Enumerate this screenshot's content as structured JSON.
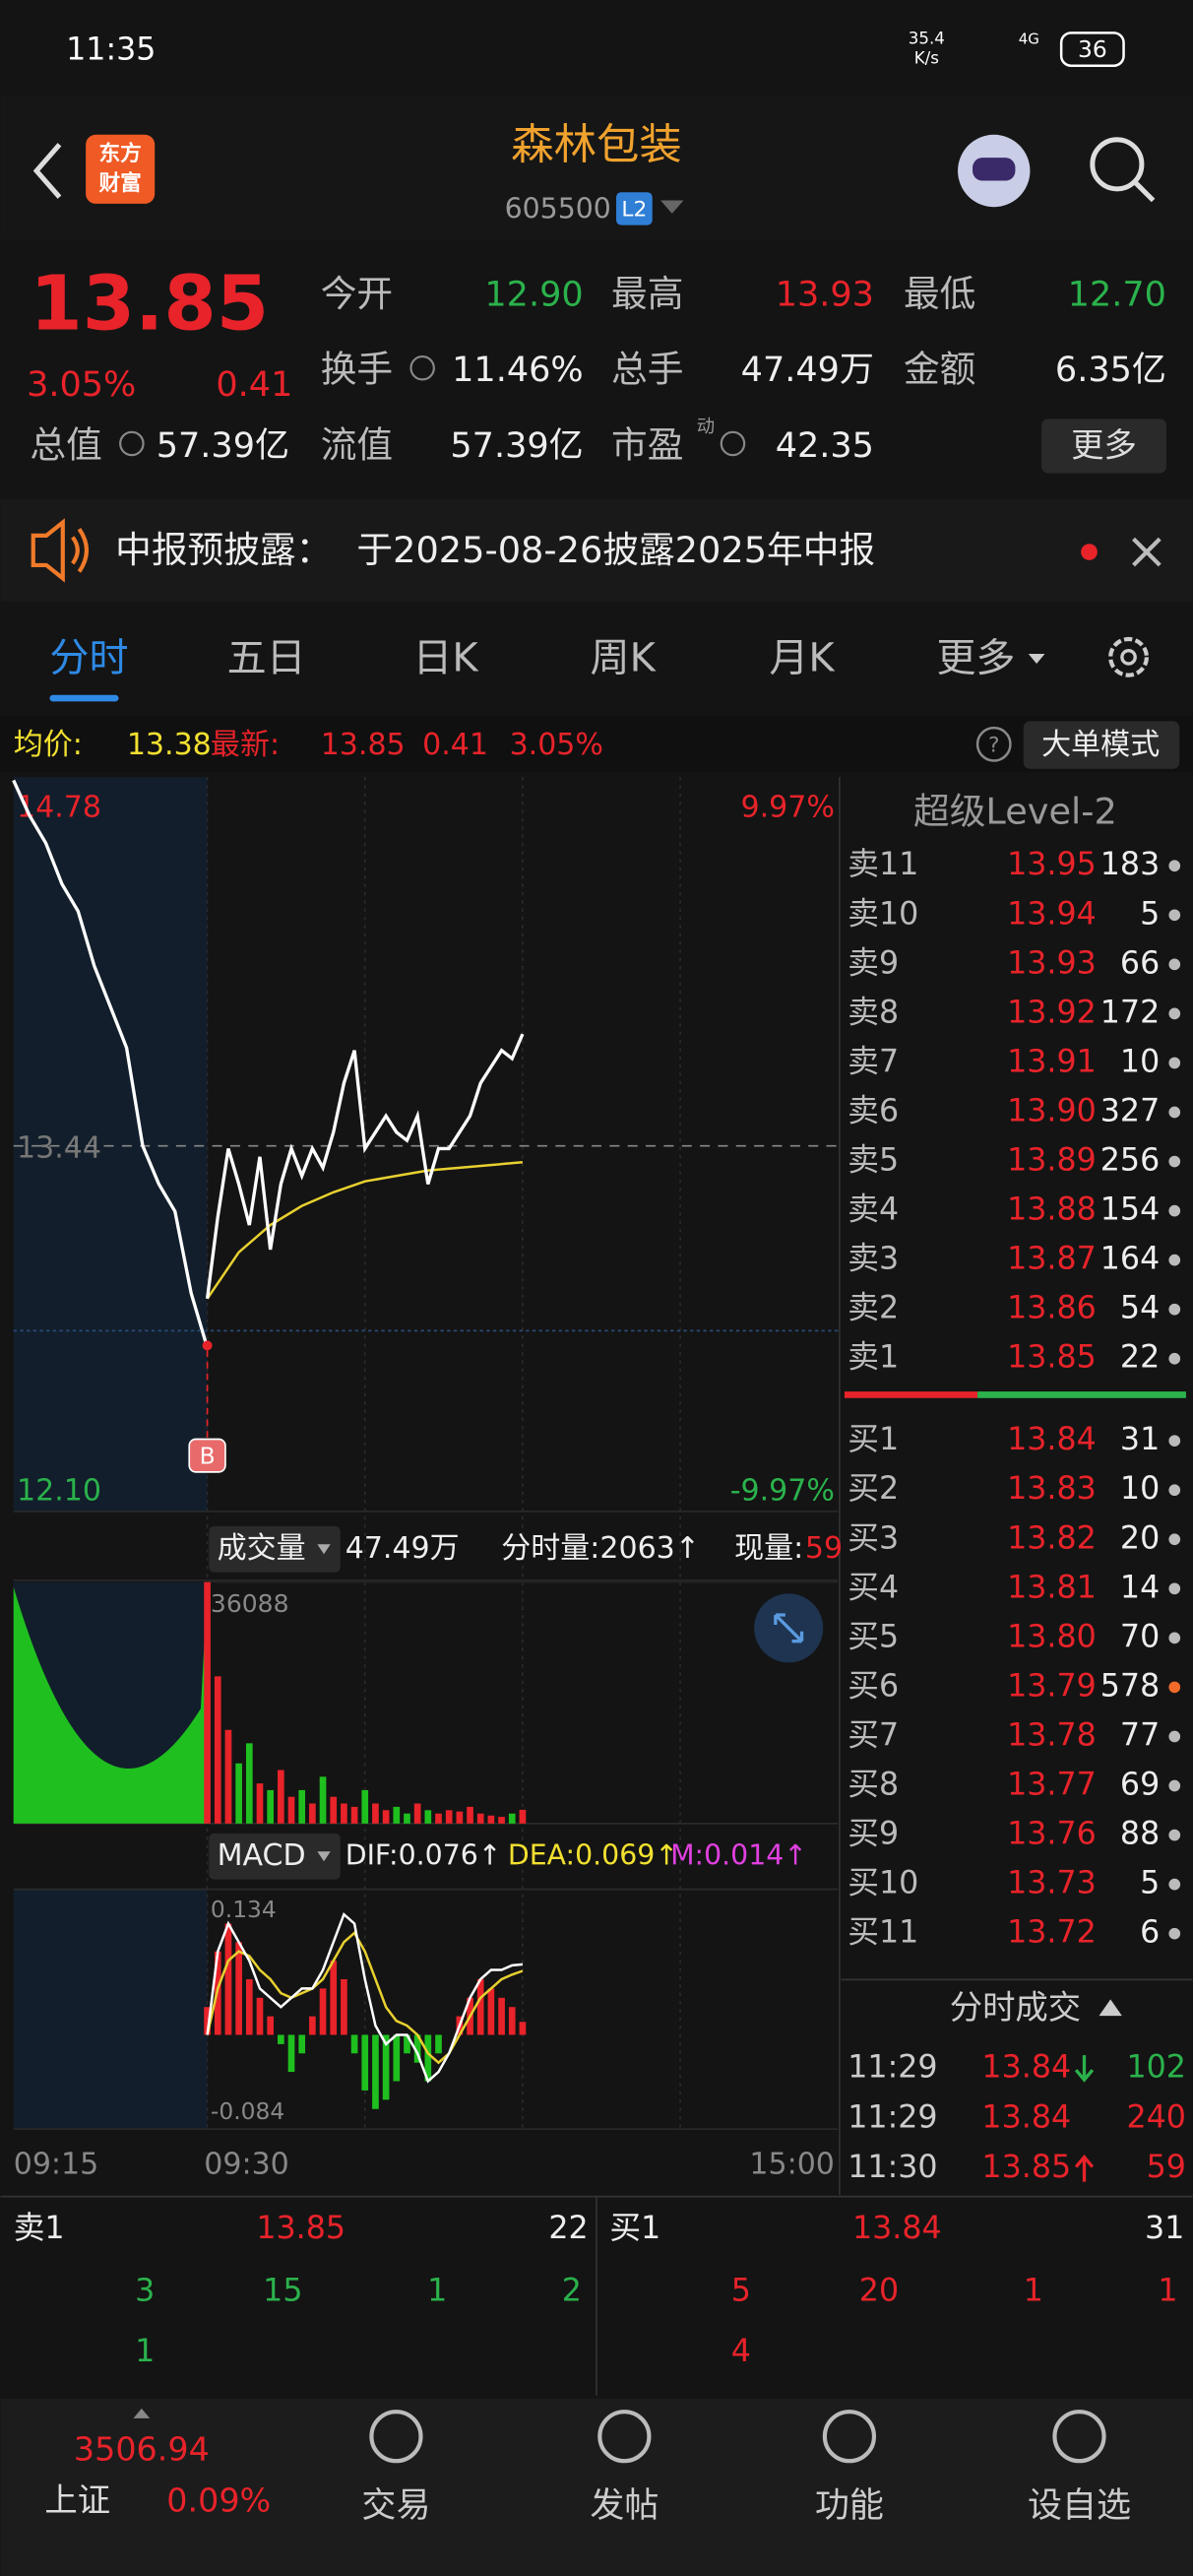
{
  "status": {
    "time": "11:35",
    "speed": "35.4",
    "speed_unit": "K/s",
    "network": "4G",
    "battery": "36"
  },
  "header": {
    "title": "森林包装",
    "code": "605500",
    "badge": "L2",
    "logo": [
      "东方",
      "财富"
    ]
  },
  "quote": {
    "price": "13.85",
    "pct": "3.05%",
    "change": "0.41",
    "fields": [
      {
        "label": "今开",
        "value": "12.90"
      },
      {
        "label": "最高",
        "value": "13.93"
      },
      {
        "label": "最低",
        "value": "12.70"
      },
      {
        "label": "换手",
        "value": "11.46%"
      },
      {
        "label": "总手",
        "value": "47.49万"
      },
      {
        "label": "金额",
        "value": "6.35亿"
      },
      {
        "label": "总值",
        "value": "57.39亿"
      },
      {
        "label": "流值",
        "value": "57.39亿"
      },
      {
        "label": "市盈",
        "value": "42.35",
        "sup": "动"
      }
    ],
    "more": "更多"
  },
  "notice": {
    "title": "中报预披露：",
    "text": "于2025-08-26披露2025年中报"
  },
  "tabs": [
    "分时",
    "五日",
    "日K",
    "周K",
    "月K",
    "更多"
  ],
  "infobar": {
    "avg_label": "均价:",
    "avg": "13.38",
    "last_label": "最新:",
    "last": "13.85",
    "change": "0.41",
    "pct": "3.05%",
    "button": "大单模式"
  },
  "intraday": {
    "ylim": [
      12.1,
      14.78
    ],
    "yticks": [
      {
        "value": 12.1,
        "label": "12.10"
      },
      {
        "value": 13.44,
        "label": "13.44"
      },
      {
        "value": 14.78,
        "label": "14.78"
      }
    ],
    "pct_high": "9.97%",
    "pct_low": "-9.97%",
    "marker": "B",
    "premarket": [
      14.78,
      14.65,
      14.55,
      14.4,
      14.3,
      14.1,
      13.95,
      13.8,
      13.44,
      13.3,
      13.2,
      12.9,
      12.7
    ],
    "price": [
      12.88,
      13.18,
      13.43,
      13.3,
      13.15,
      13.4,
      13.06,
      13.3,
      13.43,
      13.33,
      13.43,
      13.36,
      13.49,
      13.67,
      13.79,
      13.43,
      13.49,
      13.55,
      13.49,
      13.46,
      13.55,
      13.3,
      13.43,
      13.43,
      13.49,
      13.55,
      13.67,
      13.73,
      13.79,
      13.76,
      13.85
    ],
    "avg": [
      12.88,
      13.05,
      13.15,
      13.22,
      13.27,
      13.31,
      13.33,
      13.35,
      13.36,
      13.37,
      13.38
    ],
    "times": [
      "09:15",
      "09:30",
      "15:00"
    ]
  },
  "volume": {
    "label": "成交量",
    "total": "47.49万",
    "tick_vol": "分时量:2063↑",
    "now_label": "现量:",
    "now": "59",
    "ylim": [
      0,
      36088
    ],
    "yticks": [
      36088
    ],
    "values": [
      36088,
      22000,
      14000,
      9000,
      12000,
      6000,
      5000,
      8000,
      4000,
      5000,
      3000,
      7000,
      4000,
      3000,
      2500,
      5000,
      3000,
      2000,
      2500,
      1500,
      3000,
      2000,
      1500,
      2000,
      1800,
      2500,
      1500,
      1200,
      1000,
      1500,
      2063
    ]
  },
  "macd": {
    "label": "MACD",
    "dif_label": "DIF:0.076↑",
    "dea_label": "DEA:0.069↑",
    "m_label": "M:0.014↑",
    "ylim": [
      -0.084,
      0.134
    ],
    "hist": [
      0.03,
      0.09,
      0.12,
      0.1,
      0.06,
      0.04,
      0.02,
      -0.01,
      -0.04,
      -0.02,
      0.02,
      0.05,
      0.08,
      0.06,
      -0.02,
      -0.06,
      -0.08,
      -0.07,
      -0.05,
      -0.02,
      -0.03,
      -0.05,
      -0.02,
      0,
      0.02,
      0.04,
      0.06,
      0.05,
      0.04,
      0.03,
      0.014
    ],
    "dif": [
      0,
      0.09,
      0.12,
      0.1,
      0.08,
      0.05,
      0.04,
      0.03,
      0.04,
      0.05,
      0.05,
      0.07,
      0.1,
      0.13,
      0.12,
      0.06,
      0.01,
      -0.01,
      0,
      0,
      -0.02,
      -0.05,
      -0.04,
      -0.02,
      0.01,
      0.04,
      0.06,
      0.07,
      0.07,
      0.075,
      0.076
    ],
    "dea": [
      0,
      0.05,
      0.08,
      0.09,
      0.085,
      0.07,
      0.06,
      0.045,
      0.04,
      0.045,
      0.05,
      0.06,
      0.08,
      0.1,
      0.11,
      0.09,
      0.06,
      0.03,
      0.015,
      0.01,
      0,
      -0.02,
      -0.03,
      -0.02,
      0,
      0.02,
      0.04,
      0.05,
      0.06,
      0.065,
      0.069
    ]
  },
  "orderbook": {
    "title": "超级Level-2",
    "asks": [
      [
        "卖11",
        "13.95",
        "183"
      ],
      [
        "卖10",
        "13.94",
        "5"
      ],
      [
        "卖9",
        "13.93",
        "66"
      ],
      [
        "卖8",
        "13.92",
        "172"
      ],
      [
        "卖7",
        "13.91",
        "10"
      ],
      [
        "卖6",
        "13.90",
        "327"
      ],
      [
        "卖5",
        "13.89",
        "256"
      ],
      [
        "卖4",
        "13.88",
        "154"
      ],
      [
        "卖3",
        "13.87",
        "164"
      ],
      [
        "卖2",
        "13.86",
        "54"
      ],
      [
        "卖1",
        "13.85",
        "22"
      ]
    ],
    "bids": [
      [
        "买1",
        "13.84",
        "31"
      ],
      [
        "买2",
        "13.83",
        "10"
      ],
      [
        "买3",
        "13.82",
        "20"
      ],
      [
        "买4",
        "13.81",
        "14"
      ],
      [
        "买5",
        "13.80",
        "70"
      ],
      [
        "买6",
        "13.79",
        "578"
      ],
      [
        "买7",
        "13.78",
        "77"
      ],
      [
        "买8",
        "13.77",
        "69"
      ],
      [
        "买9",
        "13.76",
        "88"
      ],
      [
        "买10",
        "13.73",
        "5"
      ],
      [
        "买11",
        "13.72",
        "6"
      ]
    ]
  },
  "trades": {
    "title": "分时成交",
    "rows": [
      [
        "11:29",
        "13.84",
        "102"
      ],
      [
        "11:29",
        "13.84",
        "240"
      ],
      [
        "11:30",
        "13.85",
        "59"
      ]
    ]
  },
  "level1": {
    "sell": [
      "卖1",
      "13.85",
      "22"
    ],
    "buy": [
      "买1",
      "13.84",
      "31"
    ],
    "sell_rows": [
      [
        "3",
        "15",
        "1",
        "2"
      ],
      [
        "1"
      ]
    ],
    "buy_rows": [
      [
        "5",
        "20",
        "1",
        "1"
      ],
      [
        "4"
      ]
    ]
  },
  "index": {
    "value": "3506.94",
    "name": "上证",
    "pct": "0.09%"
  },
  "nav": [
    "交易",
    "发帖",
    "功能",
    "设自选"
  ]
}
